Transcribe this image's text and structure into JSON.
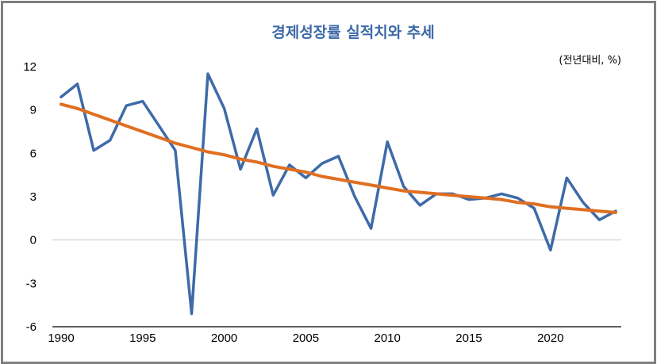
{
  "chart_data": {
    "type": "line",
    "title": "경제성장률 실적치와 추세",
    "unit_note": "(전년대비, %)",
    "xlabel": "",
    "ylabel": "",
    "xlim": [
      1990,
      2024
    ],
    "ylim": [
      -6,
      12
    ],
    "y_ticks": [
      -6,
      -3,
      0,
      3,
      6,
      9,
      12
    ],
    "x_ticks": [
      1990,
      1995,
      2000,
      2005,
      2010,
      2015,
      2020
    ],
    "grid": false,
    "colors": {
      "actual": "#3e6aa8",
      "trend": "#e06f22",
      "title": "#3e6aa8",
      "zero_line": "#c8c8c8",
      "axis": "#000000"
    },
    "series": [
      {
        "key": "actual",
        "x": [
          1990,
          1991,
          1992,
          1993,
          1994,
          1995,
          1996,
          1997,
          1998,
          1999,
          2000,
          2001,
          2002,
          2003,
          2004,
          2005,
          2006,
          2007,
          2008,
          2009,
          2010,
          2011,
          2012,
          2013,
          2014,
          2015,
          2016,
          2017,
          2018,
          2019,
          2020,
          2021,
          2022,
          2023,
          2024
        ],
        "values": [
          9.9,
          10.8,
          6.2,
          6.9,
          9.3,
          9.6,
          7.9,
          6.2,
          -5.1,
          11.5,
          9.1,
          4.9,
          7.7,
          3.1,
          5.2,
          4.3,
          5.3,
          5.8,
          3.0,
          0.8,
          6.8,
          3.7,
          2.4,
          3.2,
          3.2,
          2.8,
          2.9,
          3.2,
          2.9,
          2.2,
          -0.7,
          4.3,
          2.6,
          1.4,
          2.0
        ]
      },
      {
        "key": "trend",
        "x": [
          1990,
          1991,
          1992,
          1993,
          1994,
          1995,
          1996,
          1997,
          1998,
          1999,
          2000,
          2001,
          2002,
          2003,
          2004,
          2005,
          2006,
          2007,
          2008,
          2009,
          2010,
          2011,
          2012,
          2013,
          2014,
          2015,
          2016,
          2017,
          2018,
          2019,
          2020,
          2021,
          2022,
          2023,
          2024
        ],
        "values": [
          9.4,
          9.1,
          8.7,
          8.3,
          7.9,
          7.5,
          7.1,
          6.7,
          6.4,
          6.1,
          5.9,
          5.6,
          5.4,
          5.1,
          4.9,
          4.7,
          4.4,
          4.2,
          4.0,
          3.8,
          3.6,
          3.4,
          3.3,
          3.2,
          3.1,
          3.0,
          2.9,
          2.8,
          2.6,
          2.5,
          2.3,
          2.2,
          2.1,
          2.0,
          1.9
        ]
      }
    ]
  }
}
